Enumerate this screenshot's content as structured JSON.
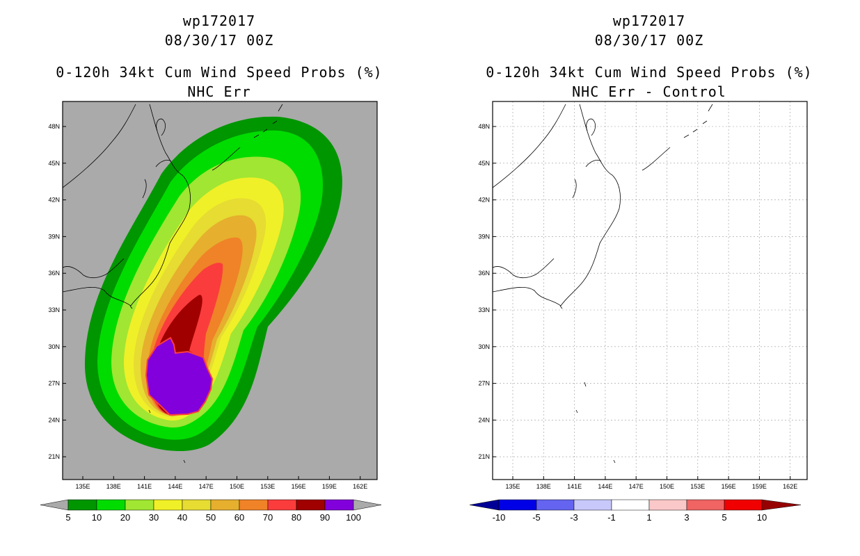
{
  "left": {
    "storm_id": "wp172017",
    "datetime": "08/30/17 00Z",
    "product": "0-120h 34kt Cum Wind Speed Probs (%)",
    "subtitle": "NHC Err",
    "lat_ticks": [
      "48N",
      "45N",
      "42N",
      "39N",
      "36N",
      "33N",
      "30N",
      "27N",
      "24N",
      "21N"
    ],
    "lon_ticks": [
      "135E",
      "138E",
      "141E",
      "144E",
      "147E",
      "150E",
      "153E",
      "156E",
      "159E",
      "162E"
    ],
    "colorbar": {
      "colors": [
        "#009600",
        "#00dc00",
        "#a0e632",
        "#f0f028",
        "#e6dc32",
        "#e6af2d",
        "#f08228",
        "#fa3c3c",
        "#a00000",
        "#8200dc"
      ],
      "labels": [
        "5",
        "10",
        "20",
        "30",
        "40",
        "50",
        "60",
        "70",
        "80",
        "90",
        "100"
      ],
      "end_color": "#aaaaaa"
    },
    "background_color": "#aaaaaa"
  },
  "right": {
    "storm_id": "wp172017",
    "datetime": "08/30/17 00Z",
    "product": "0-120h 34kt Cum Wind Speed Probs (%)",
    "subtitle": "NHC Err - Control",
    "lat_ticks": [
      "48N",
      "45N",
      "42N",
      "39N",
      "36N",
      "33N",
      "30N",
      "27N",
      "24N",
      "21N"
    ],
    "lon_ticks": [
      "135E",
      "138E",
      "141E",
      "144E",
      "147E",
      "150E",
      "153E",
      "156E",
      "159E",
      "162E"
    ],
    "colorbar": {
      "colors": [
        "#0000e6",
        "#6464f0",
        "#c8c8fa",
        "#ffffff",
        "#fac8c8",
        "#f06464",
        "#f00000"
      ],
      "labels": [
        "-10",
        "-5",
        "-3",
        "-1",
        "1",
        "3",
        "5",
        "10"
      ],
      "start_color": "#000096",
      "end_color": "#960000"
    },
    "background_color": "#ffffff"
  }
}
